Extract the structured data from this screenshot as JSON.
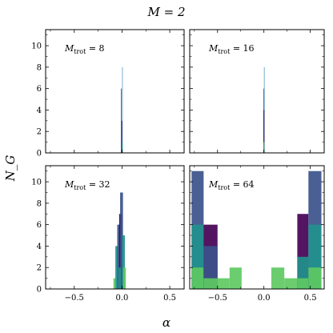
{
  "chart_data": {
    "type": "bar",
    "title": "M = 2",
    "xlabel": "α",
    "ylabel": "N_G",
    "xlim": [
      -0.8,
      0.65
    ],
    "ylim": [
      0,
      11.5
    ],
    "xticks": [
      "-0.5",
      "0.0",
      "0.5"
    ],
    "yticks": [
      "0",
      "2",
      "4",
      "6",
      "8",
      "10"
    ],
    "grid": false,
    "colormap": [
      "#440154",
      "#3b528b",
      "#21918c",
      "#5ec962",
      "#b5de2b"
    ],
    "panels": [
      {
        "label": "M_trot = 8",
        "bars": [
          {
            "x0": -0.012,
            "x1": -0.004,
            "count": 6,
            "color": "#3b528b"
          },
          {
            "x0": -0.006,
            "x1": 0.002,
            "count": 3,
            "color": "#440154"
          },
          {
            "x0": 0.0,
            "x1": 0.006,
            "count": 8,
            "color": "#6aa6c8"
          },
          {
            "x0": -0.004,
            "x1": 0.004,
            "count": 1,
            "color": "#21918c"
          }
        ]
      },
      {
        "label": "M_trot = 16",
        "bars": [
          {
            "x0": -0.006,
            "x1": 0.0,
            "count": 6,
            "color": "#3b528b"
          },
          {
            "x0": 0.0,
            "x1": 0.006,
            "count": 8,
            "color": "#6aa6c8"
          },
          {
            "x0": -0.004,
            "x1": 0.004,
            "count": 4,
            "color": "#440154"
          },
          {
            "x0": -0.003,
            "x1": 0.005,
            "count": 1,
            "color": "#5ec962"
          }
        ]
      },
      {
        "label": "M_trot = 32",
        "bars": [
          {
            "x0": -0.09,
            "x1": -0.07,
            "count": 1,
            "color": "#5ec962"
          },
          {
            "x0": -0.07,
            "x1": -0.04,
            "count": 4,
            "color": "#21918c"
          },
          {
            "x0": -0.05,
            "x1": -0.02,
            "count": 6,
            "color": "#3b528b"
          },
          {
            "x0": -0.03,
            "x1": 0.0,
            "count": 7,
            "color": "#440154"
          },
          {
            "x0": -0.02,
            "x1": 0.01,
            "count": 9,
            "color": "#3b528b"
          },
          {
            "x0": 0.0,
            "x1": 0.03,
            "count": 5,
            "color": "#21918c"
          },
          {
            "x0": 0.01,
            "x1": 0.04,
            "count": 2,
            "color": "#5ec962"
          },
          {
            "x0": -0.04,
            "x1": -0.01,
            "count": 2,
            "color": "#21918c"
          }
        ]
      },
      {
        "label": "M_trot = 64",
        "bars": [
          {
            "x0": -0.78,
            "x1": -0.65,
            "count": 11,
            "color": "#3b528b"
          },
          {
            "x0": -0.78,
            "x1": -0.65,
            "count": 6,
            "color": "#21918c"
          },
          {
            "x0": -0.78,
            "x1": -0.65,
            "count": 2,
            "color": "#5ec962"
          },
          {
            "x0": -0.65,
            "x1": -0.5,
            "count": 6,
            "color": "#440154"
          },
          {
            "x0": -0.65,
            "x1": -0.5,
            "count": 4,
            "color": "#3b528b"
          },
          {
            "x0": -0.65,
            "x1": -0.5,
            "count": 1,
            "color": "#5ec962"
          },
          {
            "x0": -0.5,
            "x1": -0.37,
            "count": 1,
            "color": "#5ec962"
          },
          {
            "x0": -0.37,
            "x1": -0.24,
            "count": 2,
            "color": "#5ec962"
          },
          {
            "x0": 0.08,
            "x1": 0.22,
            "count": 2,
            "color": "#5ec962"
          },
          {
            "x0": 0.22,
            "x1": 0.36,
            "count": 1,
            "color": "#5ec962"
          },
          {
            "x0": 0.36,
            "x1": 0.48,
            "count": 7,
            "color": "#440154"
          },
          {
            "x0": 0.36,
            "x1": 0.48,
            "count": 3,
            "color": "#21918c"
          },
          {
            "x0": 0.36,
            "x1": 0.48,
            "count": 1,
            "color": "#5ec962"
          },
          {
            "x0": 0.48,
            "x1": 0.62,
            "count": 11,
            "color": "#3b528b"
          },
          {
            "x0": 0.48,
            "x1": 0.62,
            "count": 6,
            "color": "#21918c"
          },
          {
            "x0": 0.48,
            "x1": 0.62,
            "count": 2,
            "color": "#5ec962"
          }
        ]
      }
    ]
  }
}
